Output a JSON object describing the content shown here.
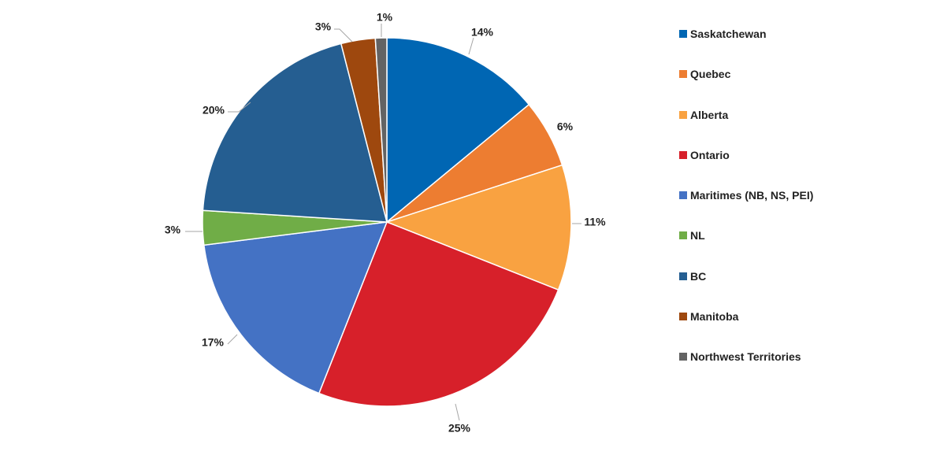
{
  "chart_data": {
    "type": "pie",
    "title": "",
    "legend_position": "right",
    "slices": [
      {
        "name": "Saskatchewan",
        "value": 14,
        "label": "14%",
        "color": "#0066B3"
      },
      {
        "name": "Quebec",
        "value": 6,
        "label": "6%",
        "color": "#ED7D31"
      },
      {
        "name": "Alberta",
        "value": 11,
        "label": "11%",
        "color": "#F9A241"
      },
      {
        "name": "Ontario",
        "value": 25,
        "label": "25%",
        "color": "#D7202A"
      },
      {
        "name": "Maritimes (NB, NS, PEI)",
        "value": 17,
        "label": "17%",
        "color": "#4472C4"
      },
      {
        "name": "NL",
        "value": 3,
        "label": "3%",
        "color": "#70AD47"
      },
      {
        "name": "BC",
        "value": 20,
        "label": "20%",
        "color": "#255E91"
      },
      {
        "name": "Manitoba",
        "value": 3,
        "label": "3%",
        "color": "#9E480E"
      },
      {
        "name": "Northwest Territories",
        "value": 1,
        "label": "1%",
        "color": "#636363"
      }
    ]
  }
}
